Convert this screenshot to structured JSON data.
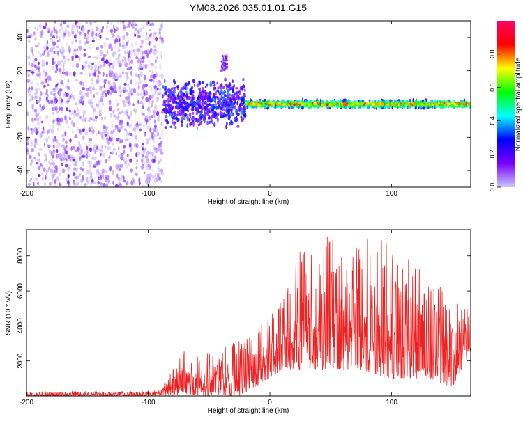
{
  "chart_data": [
    {
      "type": "heatmap",
      "title": "YM08.2026.035.01.01.G15",
      "xlabel": "Height of straight line (km)",
      "ylabel": "Frequency (Hz)",
      "xlim": [
        -200,
        165
      ],
      "ylim": [
        -50,
        50
      ],
      "x_ticks": [
        "-200",
        "-100",
        "0",
        "100"
      ],
      "y_ticks": [
        "-40",
        "-20",
        "0",
        "20",
        "40"
      ],
      "colorbar": {
        "label": "Normalized spectral amplitude",
        "range": [
          0,
          1
        ],
        "ticks": [
          "0.0",
          "0.2",
          "0.4",
          "0.6",
          "0.8"
        ],
        "colors": [
          "#c8c8ff",
          "#7a00ff",
          "#0000ff",
          "#00ffff",
          "#00ff00",
          "#ffff00",
          "#ff0000",
          "#ff0066"
        ]
      },
      "regions": [
        {
          "x_range": [
            -200,
            -88
          ],
          "freq_range": [
            -50,
            50
          ],
          "amplitude": [
            0.0,
            0.2
          ],
          "pattern": "scattered noise"
        },
        {
          "x_range": [
            -88,
            -20
          ],
          "freq_range": [
            -15,
            15
          ],
          "amplitude": [
            0.1,
            0.4
          ],
          "pattern": "broadband signal"
        },
        {
          "x_range": [
            -40,
            -35
          ],
          "freq_range": [
            20,
            30
          ],
          "amplitude": [
            0.1,
            0.2
          ],
          "pattern": "isolated patch"
        },
        {
          "x_range": [
            -20,
            165
          ],
          "freq_range": [
            -3,
            3
          ],
          "amplitude": [
            0.4,
            0.95
          ],
          "pattern": "narrow band near 0 Hz"
        }
      ]
    },
    {
      "type": "line",
      "xlabel": "Height of straight line (km)",
      "ylabel": "SNR (10 * v/v)",
      "xlim": [
        -200,
        165
      ],
      "ylim": [
        0,
        9500
      ],
      "x_ticks": [
        "-200",
        "-100",
        "0",
        "100"
      ],
      "y_ticks": [
        "2000",
        "4000",
        "6000",
        "8000"
      ],
      "color": "#ee2222",
      "envelope": [
        {
          "x": -200,
          "low": 0,
          "high": 250
        },
        {
          "x": -90,
          "low": 0,
          "high": 300
        },
        {
          "x": -80,
          "low": 0,
          "high": 2000
        },
        {
          "x": -70,
          "low": 100,
          "high": 2600
        },
        {
          "x": -55,
          "low": 0,
          "high": 2500
        },
        {
          "x": -40,
          "low": 0,
          "high": 3000
        },
        {
          "x": -25,
          "low": 0,
          "high": 3300
        },
        {
          "x": -15,
          "low": 400,
          "high": 3500
        },
        {
          "x": -5,
          "low": 800,
          "high": 4500
        },
        {
          "x": 10,
          "low": 1500,
          "high": 5500
        },
        {
          "x": 20,
          "low": 1500,
          "high": 8500
        },
        {
          "x": 40,
          "low": 1500,
          "high": 9200
        },
        {
          "x": 60,
          "low": 1500,
          "high": 9000
        },
        {
          "x": 75,
          "low": 1500,
          "high": 9300
        },
        {
          "x": 95,
          "low": 1000,
          "high": 9000
        },
        {
          "x": 110,
          "low": 1000,
          "high": 8000
        },
        {
          "x": 130,
          "low": 1000,
          "high": 7000
        },
        {
          "x": 150,
          "low": 500,
          "high": 5500
        },
        {
          "x": 165,
          "low": 2500,
          "high": 5000
        }
      ]
    }
  ]
}
